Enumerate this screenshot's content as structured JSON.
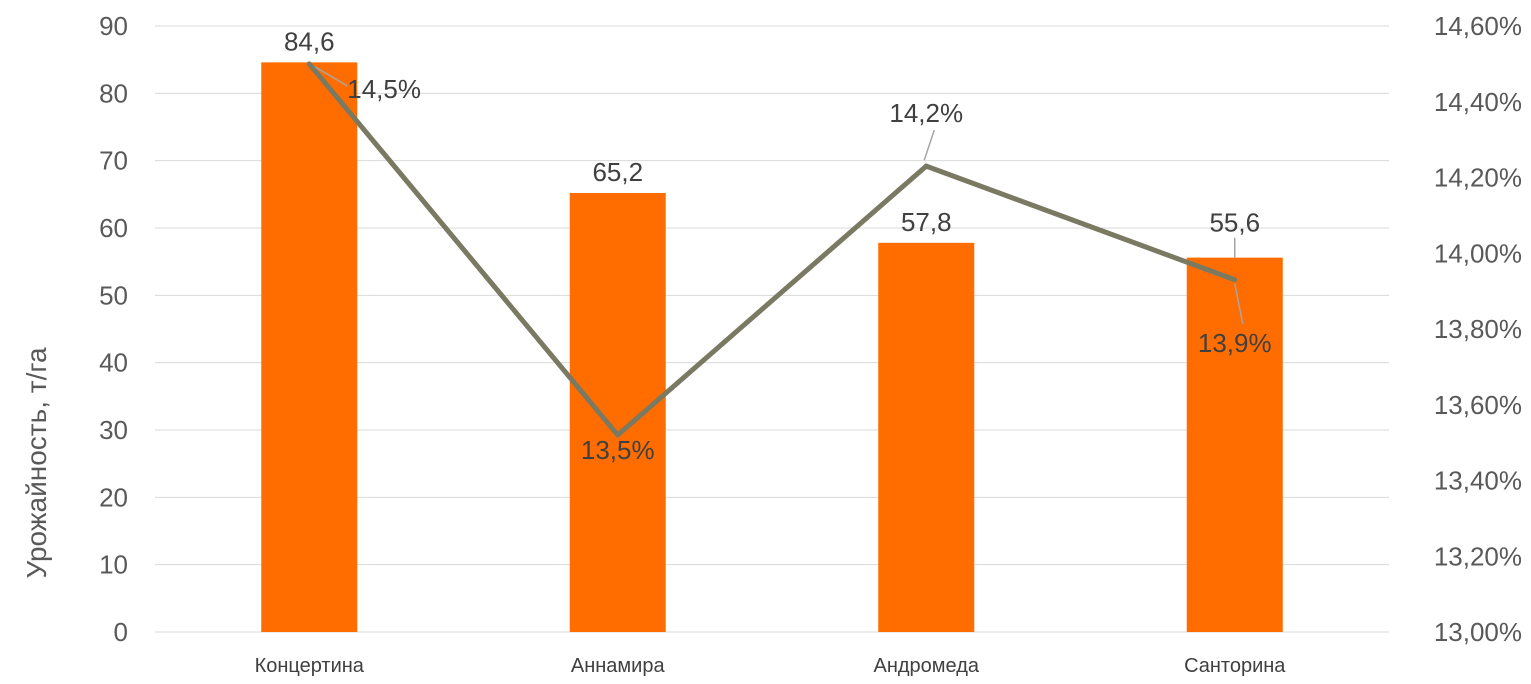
{
  "chart_data": {
    "type": "bar",
    "categories": [
      "Концертина",
      "Аннамира",
      "Андромеда",
      "Санторина"
    ],
    "series": [
      {
        "type": "bar",
        "axis": "left",
        "values": [
          84.6,
          65.2,
          57.8,
          55.6
        ],
        "labels": [
          "84,6",
          "65,2",
          "57,8",
          "55,6"
        ],
        "color": "#ff6d00"
      },
      {
        "type": "line",
        "axis": "right",
        "values": [
          14.5,
          13.52,
          14.23,
          13.93
        ],
        "labels": [
          "14,5%",
          "13,5%",
          "14,2%",
          "13,9%"
        ],
        "color": "#7a7a62"
      }
    ],
    "title": "",
    "xlabel": "",
    "ylabel": "Урожайность, т/га",
    "ylim": [
      0,
      90
    ],
    "yticks": [
      "0",
      "10",
      "20",
      "30",
      "40",
      "50",
      "60",
      "70",
      "80",
      "90"
    ],
    "y2lim": [
      13.0,
      14.6
    ],
    "y2ticks": [
      "13,00%",
      "13,20%",
      "13,40%",
      "13,60%",
      "13,80%",
      "14,00%",
      "14,20%",
      "14,40%",
      "14,60%"
    ],
    "grid": true,
    "legend": "none"
  }
}
